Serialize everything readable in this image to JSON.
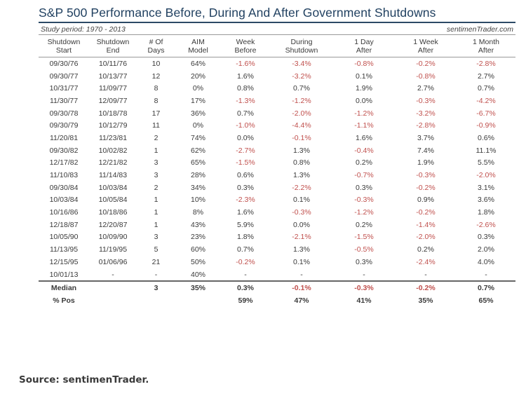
{
  "title": "S&P 500 Performance Before, During And After Government Shutdowns",
  "study_period": "Study period:  1970 - 2013",
  "brand": "sentimenTrader.com",
  "headers": [
    [
      "Shutdown",
      "Start"
    ],
    [
      "Shutdown",
      "End"
    ],
    [
      "# Of",
      "Days"
    ],
    [
      "AIM",
      "Model"
    ],
    [
      "Week",
      "Before"
    ],
    [
      "During",
      "Shutdown"
    ],
    [
      "1 Day",
      "After"
    ],
    [
      "1 Week",
      "After"
    ],
    [
      "1 Month",
      "After"
    ]
  ],
  "rows": [
    [
      "09/30/76",
      "10/11/76",
      "10",
      "64%",
      "-1.6%",
      "-3.4%",
      "-0.8%",
      "-0.2%",
      "-2.8%"
    ],
    [
      "09/30/77",
      "10/13/77",
      "12",
      "20%",
      "1.6%",
      "-3.2%",
      "0.1%",
      "-0.8%",
      "2.7%"
    ],
    [
      "10/31/77",
      "11/09/77",
      "8",
      "0%",
      "0.8%",
      "0.7%",
      "1.9%",
      "2.7%",
      "0.7%"
    ],
    [
      "11/30/77",
      "12/09/77",
      "8",
      "17%",
      "-1.3%",
      "-1.2%",
      "0.0%",
      "-0.3%",
      "-4.2%"
    ],
    [
      "09/30/78",
      "10/18/78",
      "17",
      "36%",
      "0.7%",
      "-2.0%",
      "-1.2%",
      "-3.2%",
      "-6.7%"
    ],
    [
      "09/30/79",
      "10/12/79",
      "11",
      "0%",
      "-1.0%",
      "-4.4%",
      "-1.1%",
      "-2.8%",
      "-0.9%"
    ],
    [
      "11/20/81",
      "11/23/81",
      "2",
      "74%",
      "0.0%",
      "-0.1%",
      "1.6%",
      "3.7%",
      "0.6%"
    ],
    [
      "09/30/82",
      "10/02/82",
      "1",
      "62%",
      "-2.7%",
      "1.3%",
      "-0.4%",
      "7.4%",
      "11.1%"
    ],
    [
      "12/17/82",
      "12/21/82",
      "3",
      "65%",
      "-1.5%",
      "0.8%",
      "0.2%",
      "1.9%",
      "5.5%"
    ],
    [
      "11/10/83",
      "11/14/83",
      "3",
      "28%",
      "0.6%",
      "1.3%",
      "-0.7%",
      "-0.3%",
      "-2.0%"
    ],
    [
      "09/30/84",
      "10/03/84",
      "2",
      "34%",
      "0.3%",
      "-2.2%",
      "0.3%",
      "-0.2%",
      "3.1%"
    ],
    [
      "10/03/84",
      "10/05/84",
      "1",
      "10%",
      "-2.3%",
      "0.1%",
      "-0.3%",
      "0.9%",
      "3.6%"
    ],
    [
      "10/16/86",
      "10/18/86",
      "1",
      "8%",
      "1.6%",
      "-0.3%",
      "-1.2%",
      "-0.2%",
      "1.8%"
    ],
    [
      "12/18/87",
      "12/20/87",
      "1",
      "43%",
      "5.9%",
      "0.0%",
      "0.2%",
      "-1.4%",
      "-2.6%"
    ],
    [
      "10/05/90",
      "10/09/90",
      "3",
      "23%",
      "1.8%",
      "-2.1%",
      "-1.5%",
      "-2.0%",
      "0.3%"
    ],
    [
      "11/13/95",
      "11/19/95",
      "5",
      "60%",
      "0.7%",
      "1.3%",
      "-0.5%",
      "0.2%",
      "2.0%"
    ],
    [
      "12/15/95",
      "01/06/96",
      "21",
      "50%",
      "-0.2%",
      "0.1%",
      "0.3%",
      "-2.4%",
      "4.0%"
    ],
    [
      "10/01/13",
      "-",
      "-",
      "40%",
      "-",
      "-",
      "-",
      "-",
      "-"
    ]
  ],
  "summary": [
    [
      "Median",
      "",
      "3",
      "35%",
      "0.3%",
      "-0.1%",
      "-0.3%",
      "-0.2%",
      "0.7%"
    ],
    [
      "% Pos",
      "",
      "",
      "",
      "59%",
      "47%",
      "41%",
      "35%",
      "65%"
    ]
  ],
  "source": "Source:  sentimenTrader."
}
